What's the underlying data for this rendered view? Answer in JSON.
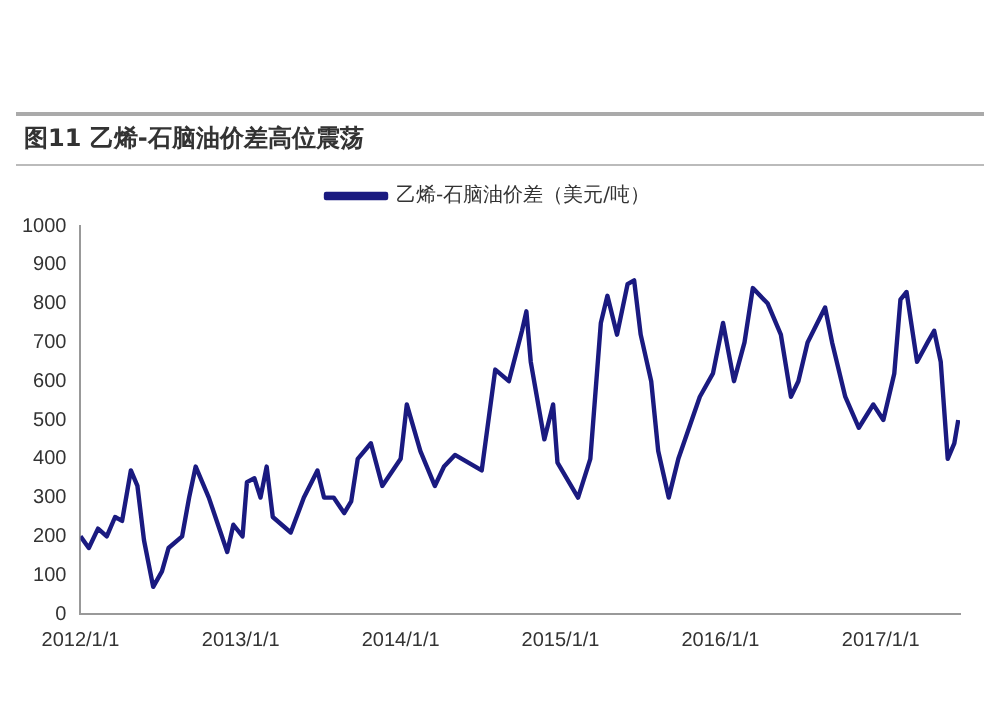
{
  "chart_data": {
    "type": "line",
    "title": "图11 乙烯-石脑油价差高位震荡",
    "legend": "top",
    "xlim": [
      "2012-01-01",
      "2017-07-01"
    ],
    "xticks": [
      {
        "value": "2012-01-01",
        "label": "2012/1/1"
      },
      {
        "value": "2013-01-01",
        "label": "2013/1/1"
      },
      {
        "value": "2014-01-01",
        "label": "2014/1/1"
      },
      {
        "value": "2015-01-01",
        "label": "2015/1/1"
      },
      {
        "value": "2016-01-01",
        "label": "2016/1/1"
      },
      {
        "value": "2017-01-01",
        "label": "2017/1/1"
      }
    ],
    "ylim": [
      0,
      1000
    ],
    "yticks": [
      0,
      100,
      200,
      300,
      400,
      500,
      600,
      700,
      800,
      900,
      1000
    ],
    "grid": false,
    "marker": "none",
    "line_style": "solid",
    "x": [
      "2012-01-01",
      "2012-01-20",
      "2012-02-10",
      "2012-03-01",
      "2012-03-20",
      "2012-04-05",
      "2012-04-25",
      "2012-05-10",
      "2012-05-25",
      "2012-06-15",
      "2012-07-05",
      "2012-07-20",
      "2012-08-20",
      "2012-09-05",
      "2012-09-20",
      "2012-10-20",
      "2012-12-01",
      "2012-12-15",
      "2013-01-05",
      "2013-01-15",
      "2013-02-01",
      "2013-02-15",
      "2013-03-01",
      "2013-03-15",
      "2013-04-25",
      "2013-05-25",
      "2013-06-25",
      "2013-07-10",
      "2013-08-01",
      "2013-08-25",
      "2013-09-10",
      "2013-09-25",
      "2013-10-25",
      "2013-11-20",
      "2014-01-01",
      "2014-01-15",
      "2014-02-15",
      "2014-03-20",
      "2014-04-10",
      "2014-05-05",
      "2014-07-05",
      "2014-08-05",
      "2014-09-05",
      "2014-10-05",
      "2014-10-15",
      "2014-10-25",
      "2014-11-25",
      "2014-12-15",
      "2014-12-25",
      "2015-02-10",
      "2015-03-10",
      "2015-04-03",
      "2015-04-18",
      "2015-05-10",
      "2015-06-03",
      "2015-06-18",
      "2015-07-03",
      "2015-07-27",
      "2015-08-12",
      "2015-09-05",
      "2015-09-27",
      "2015-11-15",
      "2015-12-15",
      "2016-01-07",
      "2016-02-01",
      "2016-02-25",
      "2016-03-15",
      "2016-04-18",
      "2016-05-18",
      "2016-06-10",
      "2016-06-27",
      "2016-07-18",
      "2016-08-27",
      "2016-09-12",
      "2016-10-12",
      "2016-11-12",
      "2016-12-15",
      "2017-01-07",
      "2017-02-01",
      "2017-02-15",
      "2017-03-01",
      "2017-03-25",
      "2017-04-18",
      "2017-05-03",
      "2017-05-18",
      "2017-06-03",
      "2017-06-18",
      "2017-06-27"
    ],
    "series": [
      {
        "name": "乙烯-石脑油价差（美元/吨）",
        "color": "#1a1a80",
        "values": [
          200,
          170,
          220,
          200,
          250,
          240,
          370,
          330,
          190,
          70,
          110,
          170,
          200,
          300,
          380,
          300,
          160,
          230,
          200,
          340,
          350,
          300,
          380,
          250,
          210,
          300,
          370,
          300,
          300,
          260,
          290,
          400,
          440,
          330,
          400,
          540,
          420,
          330,
          380,
          410,
          370,
          630,
          600,
          730,
          780,
          650,
          450,
          540,
          390,
          300,
          400,
          750,
          820,
          720,
          850,
          860,
          720,
          600,
          420,
          300,
          400,
          560,
          620,
          750,
          600,
          700,
          840,
          800,
          720,
          560,
          600,
          700,
          790,
          700,
          560,
          480,
          540,
          500,
          620,
          810,
          830,
          650,
          700,
          730,
          650,
          400,
          440,
          500
        ]
      }
    ]
  }
}
